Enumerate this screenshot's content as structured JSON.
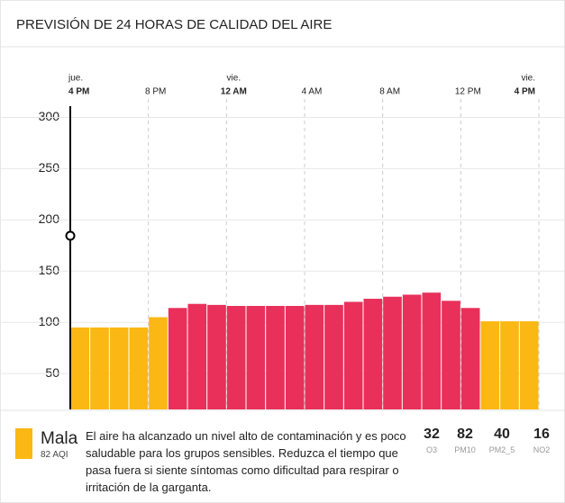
{
  "header": {
    "title": "PREVISIÓN DE 24 HORAS DE CALIDAD DEL AIRE"
  },
  "chart_data": {
    "type": "bar",
    "values": [
      95,
      95,
      95,
      95,
      105,
      114,
      118,
      117,
      116,
      116,
      116,
      116,
      117,
      117,
      120,
      123,
      125,
      127,
      129,
      121,
      114,
      101,
      101,
      101
    ],
    "colors": [
      "#fbb714",
      "#fbb714",
      "#fbb714",
      "#fbb714",
      "#fbb714",
      "#e8305a",
      "#e8305a",
      "#e8305a",
      "#e8305a",
      "#e8305a",
      "#e8305a",
      "#e8305a",
      "#e8305a",
      "#e8305a",
      "#e8305a",
      "#e8305a",
      "#e8305a",
      "#e8305a",
      "#e8305a",
      "#e8305a",
      "#e8305a",
      "#fbb714",
      "#fbb714",
      "#fbb714"
    ],
    "ylim": [
      15,
      318
    ],
    "yticks": [
      50,
      100,
      150,
      200,
      250,
      300
    ],
    "grid": true,
    "time_ticks": [
      {
        "day": "jue.",
        "time": "4 PM"
      },
      {
        "time": "8 PM"
      },
      {
        "day": "vie.",
        "time": "12 AM"
      },
      {
        "time": "4 AM"
      },
      {
        "time": "8 AM"
      },
      {
        "time": "12 PM"
      },
      {
        "day": "vie.",
        "time": "4 PM"
      }
    ]
  },
  "summary": {
    "level": "Mala",
    "aqi": "82 AQI",
    "color": "#fbb714",
    "text": "El aire ha alcanzado un nivel alto de contaminación y es poco saludable para los grupos sensibles. Reduzca el tiempo que pasa fuera si siente síntomas como dificultad para respirar o irritación de la garganta."
  },
  "pollutants": [
    {
      "value": 32,
      "name": "O3"
    },
    {
      "value": 82,
      "name": "PM10"
    },
    {
      "value": 40,
      "name": "PM2_5"
    },
    {
      "value": 16,
      "name": "NO2"
    }
  ]
}
